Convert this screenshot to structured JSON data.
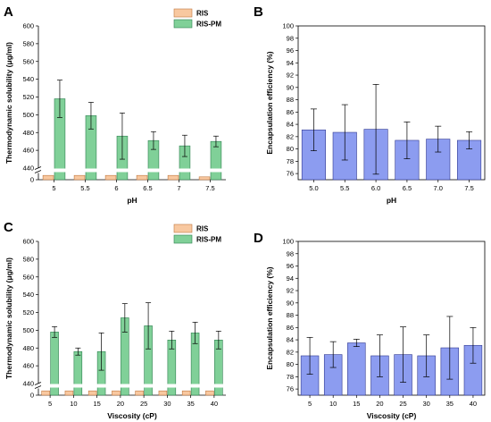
{
  "colors": {
    "ris": "#f8c8a0",
    "ris_edge": "#c07840",
    "ris_pm": "#80d098",
    "ris_pm_edge": "#2e8050",
    "ee": "#8c9cf0",
    "ee_edge": "#303890"
  },
  "chart_data": [
    {
      "panel": "A",
      "type": "bar",
      "xlabel": "pH",
      "ylabel": "Thermodynamic solubility (μg/ml)",
      "categories": [
        "5",
        "5.5",
        "6",
        "6.5",
        "7",
        "7.5"
      ],
      "axis_break": true,
      "lower_axis": {
        "ylim": [
          0,
          5
        ],
        "ticks": [
          "0"
        ]
      },
      "upper_axis": {
        "ylim": [
          440,
          600
        ],
        "ticks": [
          "440",
          "460",
          "480",
          "500",
          "520",
          "540",
          "560",
          "580",
          "600"
        ]
      },
      "legend": {
        "position": "top-right",
        "entries": [
          "RIS",
          "RIS-PM"
        ]
      },
      "series": [
        {
          "name": "RIS",
          "values": [
            3,
            3,
            3,
            3,
            3,
            2
          ]
        },
        {
          "name": "RIS-PM",
          "values": [
            518,
            499,
            476,
            471,
            465,
            470
          ],
          "errors": [
            21,
            15,
            26,
            10,
            12,
            6
          ]
        }
      ]
    },
    {
      "panel": "B",
      "type": "bar",
      "xlabel": "pH",
      "ylabel": "Encapsulation efficiency (%)",
      "categories": [
        "5.0",
        "5.5",
        "6.0",
        "6.5",
        "7.0",
        "7.5"
      ],
      "ylim": [
        75,
        100
      ],
      "yticks": [
        "76",
        "78",
        "80",
        "82",
        "84",
        "86",
        "88",
        "90",
        "92",
        "94",
        "96",
        "98",
        "100"
      ],
      "series": [
        {
          "values": [
            83.1,
            82.7,
            83.2,
            81.4,
            81.6,
            81.4
          ],
          "errors": [
            3.4,
            4.5,
            7.3,
            3.0,
            2.1,
            1.4
          ]
        }
      ]
    },
    {
      "panel": "C",
      "type": "bar",
      "xlabel": "Viscosity (cP)",
      "ylabel": "Thermodynamic solubility (μg/ml)",
      "categories": [
        "5",
        "10",
        "15",
        "20",
        "25",
        "30",
        "35",
        "40"
      ],
      "axis_break": true,
      "lower_axis": {
        "ylim": [
          0,
          5
        ],
        "ticks": [
          "0"
        ]
      },
      "upper_axis": {
        "ylim": [
          440,
          600
        ],
        "ticks": [
          "440",
          "460",
          "480",
          "500",
          "520",
          "540",
          "560",
          "580",
          "600"
        ]
      },
      "legend": {
        "position": "top-right",
        "entries": [
          "RIS",
          "RIS-PM"
        ]
      },
      "series": [
        {
          "name": "RIS",
          "values": [
            3,
            3,
            3,
            3,
            3,
            3,
            3,
            3
          ]
        },
        {
          "name": "RIS-PM",
          "values": [
            498,
            476,
            476,
            514,
            505,
            489,
            497,
            489
          ],
          "errors": [
            6,
            4,
            21,
            16,
            26,
            10,
            12,
            10
          ]
        }
      ]
    },
    {
      "panel": "D",
      "type": "bar",
      "xlabel": "Viscosity (cP)",
      "ylabel": "Encapsulation efficiency (%)",
      "categories": [
        "5",
        "10",
        "15",
        "20",
        "25",
        "30",
        "35",
        "40"
      ],
      "ylim": [
        75,
        100
      ],
      "yticks": [
        "76",
        "78",
        "80",
        "82",
        "84",
        "86",
        "88",
        "90",
        "92",
        "94",
        "96",
        "98",
        "100"
      ],
      "series": [
        {
          "values": [
            81.4,
            81.6,
            83.5,
            81.4,
            81.6,
            81.4,
            82.7,
            83.1
          ],
          "errors": [
            3.0,
            2.1,
            0.6,
            3.4,
            4.5,
            3.4,
            5.1,
            2.9
          ]
        }
      ]
    }
  ]
}
